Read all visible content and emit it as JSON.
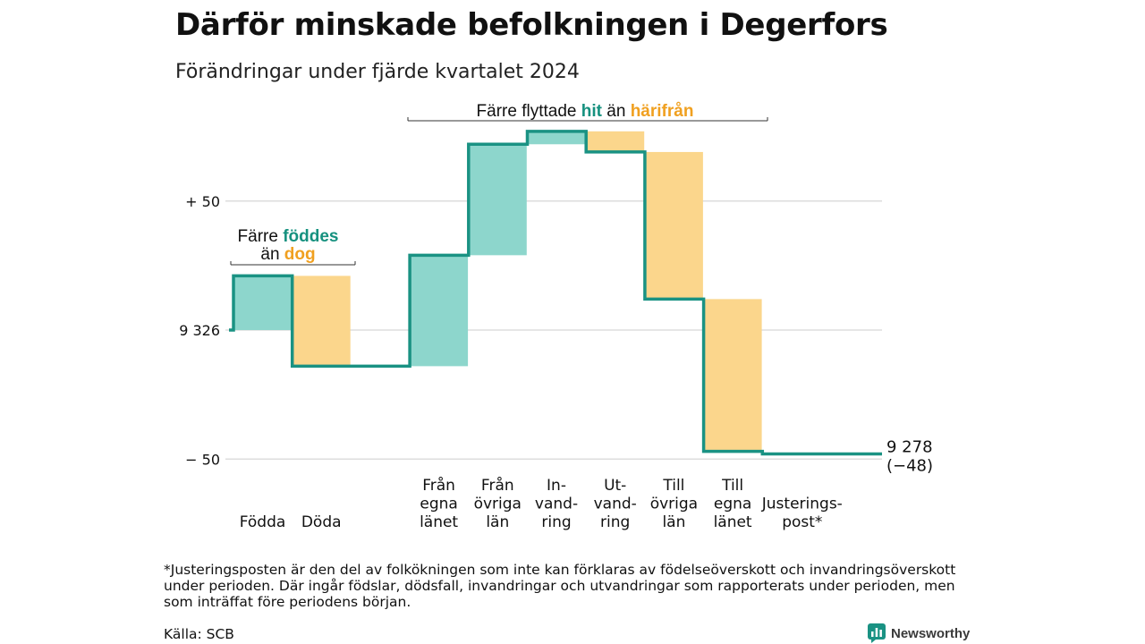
{
  "header": {
    "title": "Därför minskade befolkningen i Degerfors",
    "subtitle": "Förändringar under fjärde kvartalet 2024"
  },
  "colors": {
    "inflow": "#8dd6cc",
    "outflow": "#fbd68c",
    "line": "#1a9283",
    "teal_text": "#16917f",
    "orange_text": "#f0a020",
    "grid": "#dddddd"
  },
  "chart_data": {
    "type": "waterfall",
    "start_value": 9326,
    "end_value": 9278,
    "end_label": "9 278",
    "end_change_label": "(−48)",
    "ylim": [
      -50,
      80
    ],
    "y_ticks": [
      {
        "value": 50,
        "label": "+ 50"
      },
      {
        "value": 0,
        "label": "9 326"
      },
      {
        "value": -50,
        "label": "− 50"
      }
    ],
    "grid": true,
    "steps": [
      {
        "category": "Födda",
        "label_lines": [
          "Födda"
        ],
        "change": 21,
        "kind": "in"
      },
      {
        "category": "Döda",
        "label_lines": [
          "Döda"
        ],
        "change": -35,
        "kind": "out"
      },
      {
        "category": "",
        "label_lines": [],
        "change": 0,
        "kind": "gap"
      },
      {
        "category": "Från egna länet",
        "label_lines": [
          "Från",
          "egna",
          "länet"
        ],
        "change": 43,
        "kind": "in"
      },
      {
        "category": "Från övriga län",
        "label_lines": [
          "Från",
          "övriga",
          "län"
        ],
        "change": 43,
        "kind": "in"
      },
      {
        "category": "In-vandring",
        "label_lines": [
          "In-",
          "vand-",
          "ring"
        ],
        "change": 5,
        "kind": "in"
      },
      {
        "category": "Ut-vandring",
        "label_lines": [
          "Ut-",
          "vand-",
          "ring"
        ],
        "change": -8,
        "kind": "out"
      },
      {
        "category": "Till övriga län",
        "label_lines": [
          "Till",
          "övriga",
          "län"
        ],
        "change": -57,
        "kind": "out"
      },
      {
        "category": "Till egna länet",
        "label_lines": [
          "Till",
          "egna",
          "länet"
        ],
        "change": -59,
        "kind": "out"
      },
      {
        "category": "Justeringspost*",
        "label_lines": [
          "Justerings-",
          "post*"
        ],
        "change": -1,
        "kind": "adjust"
      }
    ],
    "annotations": [
      {
        "id": "births",
        "line1": [
          "Färre ",
          "föddes"
        ],
        "line2": [
          "än ",
          "dog"
        ]
      },
      {
        "id": "migration",
        "line1": [
          "Färre flyttade ",
          "hit",
          " än ",
          "härifrån"
        ]
      }
    ]
  },
  "footer": {
    "footnote": "*Justeringsposten är den del av folkökningen som inte kan förklaras av födelseöverskott och invandringsöverskott under perioden. Där ingår födslar, dödsfall, invandringar och utvandringar som rapporterats under perioden, men som inträffat före periodens början.",
    "source": "Källa: SCB",
    "brand": "Newsworthy"
  }
}
